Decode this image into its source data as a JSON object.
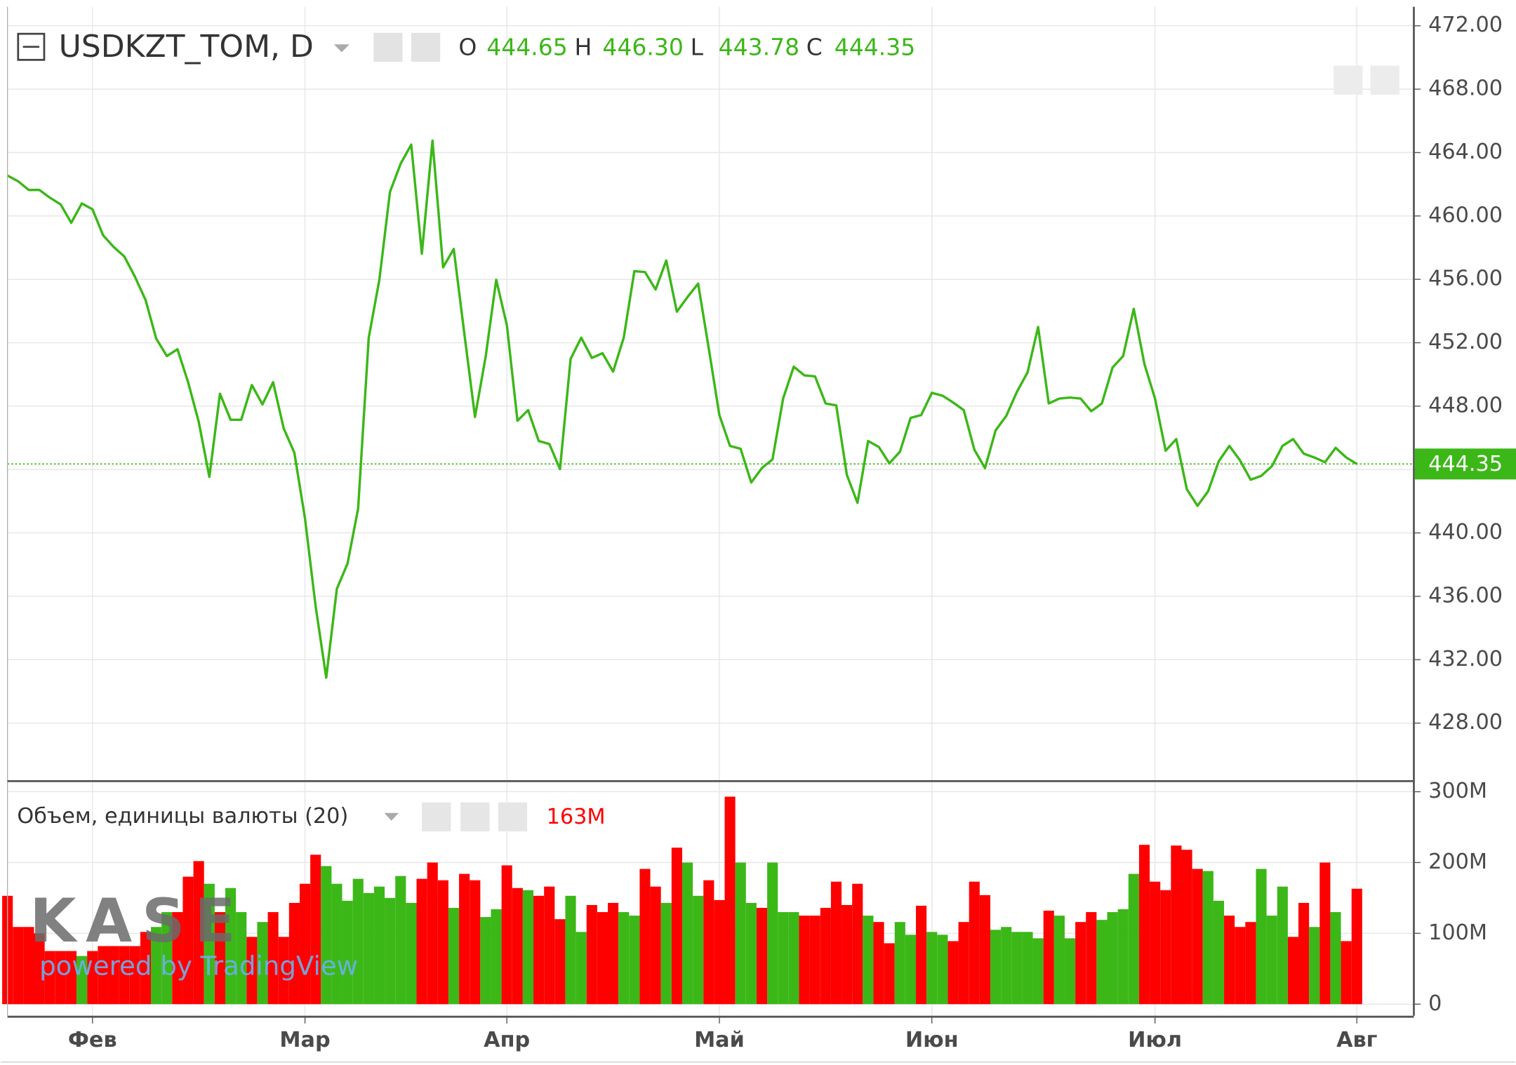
{
  "chart_data": [
    {
      "type": "line",
      "title": "USDKZT_TOM, D",
      "color": "#3cb718",
      "ohlc_names": [
        "O",
        "H",
        "L",
        "C"
      ],
      "ohlc_value_labels": [
        "444.65",
        "446.30",
        "443.78",
        "444.35"
      ],
      "last_price": {
        "value": 444.35,
        "label": "444.35"
      },
      "categories": [
        null,
        null,
        null,
        null,
        null,
        null,
        null,
        null,
        "Фев",
        null,
        null,
        null,
        null,
        null,
        null,
        null,
        null,
        null,
        null,
        null,
        null,
        null,
        null,
        null,
        null,
        null,
        null,
        null,
        "Мар",
        null,
        null,
        null,
        null,
        null,
        null,
        null,
        null,
        null,
        null,
        null,
        null,
        null,
        null,
        null,
        null,
        null,
        null,
        "Апр",
        null,
        null,
        null,
        null,
        null,
        null,
        null,
        null,
        null,
        null,
        null,
        null,
        null,
        null,
        null,
        null,
        null,
        null,
        null,
        "Май",
        null,
        null,
        null,
        null,
        null,
        null,
        null,
        null,
        null,
        null,
        null,
        null,
        null,
        null,
        null,
        null,
        null,
        null,
        null,
        "Июн",
        null,
        null,
        null,
        null,
        null,
        null,
        null,
        null,
        null,
        null,
        null,
        null,
        null,
        null,
        null,
        null,
        null,
        null,
        null,
        null,
        "Июл",
        null,
        null,
        null,
        null,
        null,
        null,
        null,
        null,
        null,
        null,
        null,
        null,
        null,
        null,
        null,
        null,
        null,
        null,
        "Авг"
      ],
      "values": [
        462.55,
        462.19,
        461.64,
        461.64,
        461.15,
        460.73,
        459.57,
        460.79,
        460.42,
        458.78,
        458.04,
        457.44,
        456.16,
        454.69,
        452.26,
        451.16,
        451.59,
        449.51,
        447.01,
        443.54,
        448.78,
        447.14,
        447.14,
        449.33,
        448.11,
        449.51,
        446.59,
        445.06,
        440.92,
        435.38,
        430.87,
        436.47,
        438.06,
        441.53,
        452.32,
        455.97,
        461.52,
        463.29,
        464.5,
        457.62,
        464.75,
        456.76,
        457.92,
        452.56,
        447.32,
        451.1,
        455.97,
        453.11,
        447.08,
        447.75,
        445.8,
        445.61,
        444.03,
        450.98,
        452.32,
        451.04,
        451.34,
        450.18,
        452.32,
        456.52,
        456.46,
        455.36,
        457.19,
        453.96,
        454.88,
        455.73,
        451.65,
        447.44,
        445.49,
        445.31,
        443.18,
        444.09,
        444.64,
        448.48,
        450.49,
        449.94,
        449.88,
        448.17,
        448.05,
        443.66,
        441.9,
        445.8,
        445.43,
        444.39,
        445.13,
        447.26,
        447.44,
        448.84,
        448.66,
        448.23,
        447.75,
        445.25,
        444.09,
        446.47,
        447.38,
        448.9,
        450.12,
        452.99,
        448.17,
        448.48,
        448.54,
        448.48,
        447.68,
        448.17,
        450.43,
        451.16,
        454.14,
        450.67,
        448.48,
        445.19,
        445.92,
        442.75,
        441.71,
        442.63,
        444.52,
        445.49,
        444.58,
        443.36,
        443.6,
        444.21,
        445.49,
        445.92,
        445.0,
        444.76,
        444.46,
        445.37,
        444.76,
        444.35
      ],
      "ylim": [
        424.4,
        473.2
      ],
      "yticks": [
        {
          "value": 428,
          "label": "428.00"
        },
        {
          "value": 432,
          "label": "432.00"
        },
        {
          "value": 436,
          "label": "436.00"
        },
        {
          "value": 440,
          "label": "440.00"
        },
        {
          "value": 444,
          "label": "444.00"
        },
        {
          "value": 448,
          "label": "448.00"
        },
        {
          "value": 452,
          "label": "452.00"
        },
        {
          "value": 456,
          "label": "456.00"
        },
        {
          "value": 460,
          "label": "460.00"
        },
        {
          "value": 464,
          "label": "464.00"
        },
        {
          "value": 468,
          "label": "468.00"
        },
        {
          "value": 472,
          "label": "472.00"
        }
      ],
      "grid": true,
      "logo": "KASE",
      "attribution": "powered by TradingView"
    },
    {
      "type": "bar",
      "title": "Объем, единицы валюты (20)",
      "last_label": "163M",
      "label_color": "#ff0000",
      "values": [
        153,
        109,
        109,
        100,
        75,
        75,
        75,
        68,
        75,
        82,
        82,
        82,
        82,
        102,
        109,
        130,
        130,
        180,
        202,
        170,
        130,
        164,
        130,
        95,
        116,
        130,
        95,
        143,
        170,
        211,
        195,
        170,
        146,
        177,
        157,
        166,
        150,
        181,
        143,
        177,
        200,
        175,
        136,
        184,
        175,
        123,
        134,
        196,
        164,
        161,
        153,
        166,
        120,
        153,
        102,
        140,
        130,
        143,
        130,
        125,
        191,
        166,
        143,
        221,
        200,
        153,
        175,
        147,
        293,
        200,
        143,
        136,
        200,
        130,
        130,
        125,
        125,
        136,
        173,
        140,
        170,
        125,
        116,
        86,
        116,
        98,
        139,
        102,
        98,
        89,
        116,
        173,
        154,
        105,
        109,
        102,
        102,
        93,
        132,
        125,
        93,
        116,
        130,
        119,
        130,
        134,
        184,
        225,
        173,
        161,
        224,
        218,
        191,
        188,
        146,
        125,
        109,
        116,
        191,
        125,
        166,
        95,
        143,
        109,
        200,
        130,
        89,
        163
      ],
      "colors": [
        "#ff0000",
        "#ff0000",
        "#ff0000",
        "#ff0000",
        "#ff0000",
        "#ff0000",
        "#ff0000",
        "#3cb718",
        "#ff0000",
        "#ff0000",
        "#ff0000",
        "#ff0000",
        "#ff0000",
        "#ff0000",
        "#3cb718",
        "#3cb718",
        "#ff0000",
        "#ff0000",
        "#ff0000",
        "#3cb718",
        "#ff0000",
        "#3cb718",
        "#3cb718",
        "#ff0000",
        "#3cb718",
        "#ff0000",
        "#ff0000",
        "#ff0000",
        "#ff0000",
        "#ff0000",
        "#3cb718",
        "#3cb718",
        "#3cb718",
        "#3cb718",
        "#3cb718",
        "#3cb718",
        "#3cb718",
        "#3cb718",
        "#3cb718",
        "#ff0000",
        "#ff0000",
        "#ff0000",
        "#3cb718",
        "#ff0000",
        "#ff0000",
        "#3cb718",
        "#3cb718",
        "#ff0000",
        "#ff0000",
        "#3cb718",
        "#ff0000",
        "#ff0000",
        "#ff0000",
        "#3cb718",
        "#3cb718",
        "#ff0000",
        "#ff0000",
        "#ff0000",
        "#3cb718",
        "#3cb718",
        "#ff0000",
        "#ff0000",
        "#3cb718",
        "#ff0000",
        "#3cb718",
        "#3cb718",
        "#ff0000",
        "#ff0000",
        "#ff0000",
        "#3cb718",
        "#3cb718",
        "#ff0000",
        "#3cb718",
        "#3cb718",
        "#3cb718",
        "#ff0000",
        "#ff0000",
        "#ff0000",
        "#ff0000",
        "#ff0000",
        "#ff0000",
        "#3cb718",
        "#ff0000",
        "#ff0000",
        "#3cb718",
        "#3cb718",
        "#ff0000",
        "#3cb718",
        "#3cb718",
        "#ff0000",
        "#ff0000",
        "#ff0000",
        "#ff0000",
        "#3cb718",
        "#3cb718",
        "#3cb718",
        "#3cb718",
        "#3cb718",
        "#ff0000",
        "#3cb718",
        "#3cb718",
        "#ff0000",
        "#ff0000",
        "#3cb718",
        "#3cb718",
        "#3cb718",
        "#3cb718",
        "#ff0000",
        "#ff0000",
        "#ff0000",
        "#ff0000",
        "#ff0000",
        "#ff0000",
        "#3cb718",
        "#3cb718",
        "#ff0000",
        "#ff0000",
        "#ff0000",
        "#3cb718",
        "#3cb718",
        "#3cb718",
        "#ff0000",
        "#ff0000",
        "#3cb718",
        "#ff0000",
        "#3cb718",
        "#ff0000",
        "#ff0000"
      ],
      "ylim": [
        -16.4,
        313.6
      ],
      "yticks": [
        0,
        {
          "value": 100,
          "label": "100M"
        },
        {
          "value": 200,
          "label": "200M"
        },
        {
          "value": 300,
          "label": "300M"
        }
      ],
      "grid": true
    }
  ]
}
